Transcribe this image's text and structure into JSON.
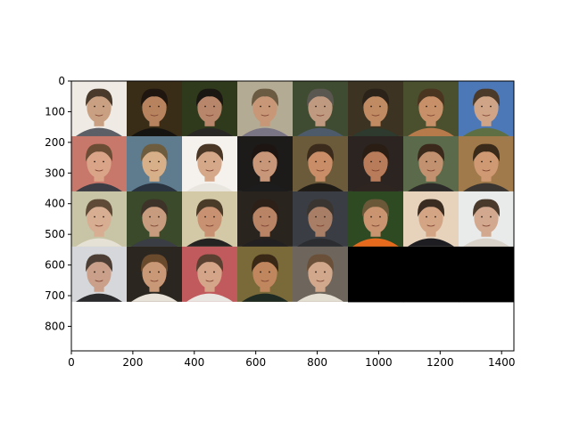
{
  "chart_data": {
    "type": "image",
    "xlim": [
      0,
      1440
    ],
    "ylim": [
      0,
      880
    ],
    "y_inverted": true,
    "x_ticks": [
      0,
      200,
      400,
      600,
      800,
      1000,
      1200,
      1400
    ],
    "y_ticks": [
      0,
      100,
      200,
      300,
      400,
      500,
      600,
      700,
      800
    ],
    "grid": {
      "rows": 4,
      "cols": 8,
      "tile_size": 180,
      "tiles_filled": 29
    },
    "empty_fill": "#000000",
    "title": "",
    "xlabel": "",
    "ylabel": "",
    "tiles": [
      {
        "bg": "#efeae4",
        "skin": "#c9a182",
        "hair": "#4a3a2c",
        "shirt": "#5d5f66"
      },
      {
        "bg": "#3a2d17",
        "skin": "#b7835f",
        "hair": "#1f160f",
        "shirt": "#161410"
      },
      {
        "bg": "#2f3a1c",
        "skin": "#b8866a",
        "hair": "#1a1611",
        "shirt": "#2a2824"
      },
      {
        "bg": "#b4ab95",
        "skin": "#c79777",
        "hair": "#6b5b43",
        "shirt": "#7a7584"
      },
      {
        "bg": "#3f4c31",
        "skin": "#c09a80",
        "hair": "#5a5650",
        "shirt": "#4c5a6a"
      },
      {
        "bg": "#3c3322",
        "skin": "#c08a62",
        "hair": "#2b2219",
        "shirt": "#2d3a2d"
      },
      {
        "bg": "#4a4f2e",
        "skin": "#c89068",
        "hair": "#4a3520",
        "shirt": "#b77a4b"
      },
      {
        "bg": "#4d78b7",
        "skin": "#d0a486",
        "hair": "#4b3a2a",
        "shirt": "#5e6f43"
      },
      {
        "bg": "#c8786a",
        "skin": "#d9a487",
        "hair": "#6b4d35",
        "shirt": "#3c3c44"
      },
      {
        "bg": "#5f7c8e",
        "skin": "#d7b089",
        "hair": "#6e5c3e",
        "shirt": "#2a3340"
      },
      {
        "bg": "#f5f2ee",
        "skin": "#d6a88a",
        "hair": "#4a3624",
        "shirt": "#e9e5df"
      },
      {
        "bg": "#1d1b1a",
        "skin": "#c8977a",
        "hair": "#1c1511",
        "shirt": "#1d1c1c"
      },
      {
        "bg": "#6b5b3a",
        "skin": "#c98e67",
        "hair": "#3b2b1c",
        "shirt": "#1f1c18"
      },
      {
        "bg": "#2b2420",
        "skin": "#b97c5a",
        "hair": "#2a1d14",
        "shirt": "#2e2520"
      },
      {
        "bg": "#5a6a4a",
        "skin": "#c2916f",
        "hair": "#3b2a1c",
        "shirt": "#2c2a28"
      },
      {
        "bg": "#a07a4a",
        "skin": "#cf9a73",
        "hair": "#3a2a1a",
        "shirt": "#3a3530"
      },
      {
        "bg": "#c8c4a6",
        "skin": "#d8ae92",
        "hair": "#5e4a36",
        "shirt": "#e6e1d5"
      },
      {
        "bg": "#3a4a2a",
        "skin": "#c69b7e",
        "hair": "#3e3328",
        "shirt": "#3b3d44"
      },
      {
        "bg": "#d4c9a6",
        "skin": "#c89272",
        "hair": "#4a3a28",
        "shirt": "#262422"
      },
      {
        "bg": "#2a241e",
        "skin": "#b98466",
        "hair": "#2c2018",
        "shirt": "#222020"
      },
      {
        "bg": "#3a3e44",
        "skin": "#a87f66",
        "hair": "#3a3530",
        "shirt": "#2c2d30"
      },
      {
        "bg": "#2e4a22",
        "skin": "#c9946f",
        "hair": "#6b5838",
        "shirt": "#e56a1e"
      },
      {
        "bg": "#e7d3bb",
        "skin": "#d4a585",
        "hair": "#3a2c20",
        "shirt": "#1e1e22"
      },
      {
        "bg": "#e9ebea",
        "skin": "#d2a88e",
        "hair": "#4a3a2c",
        "shirt": "#d9d2c8"
      },
      {
        "bg": "#d5d7da",
        "skin": "#caa08a",
        "hair": "#4c3e34",
        "shirt": "#2a2a2c"
      },
      {
        "bg": "#2c2620",
        "skin": "#c99876",
        "hair": "#6a4a2c",
        "shirt": "#e8e2d8"
      },
      {
        "bg": "#c05a5c",
        "skin": "#d5a589",
        "hair": "#5a4030",
        "shirt": "#e9e6e2"
      },
      {
        "bg": "#7a6a3a",
        "skin": "#c0875f",
        "hair": "#3a2816",
        "shirt": "#1f2a22"
      },
      {
        "bg": "#6e665c",
        "skin": "#d2a88c",
        "hair": "#6a5038",
        "shirt": "#e3ddd2"
      }
    ]
  }
}
